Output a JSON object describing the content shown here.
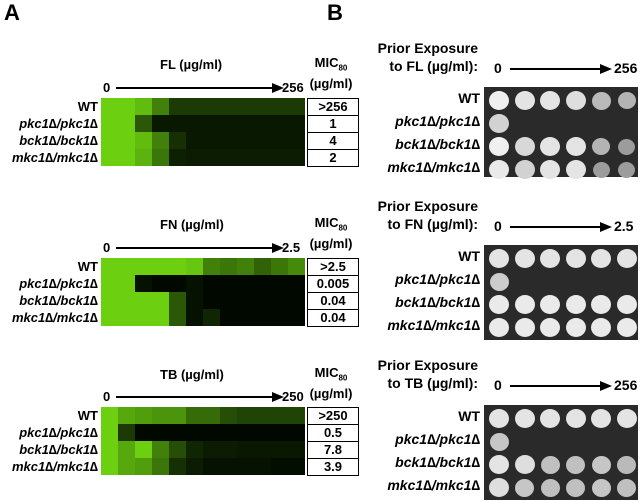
{
  "panels": {
    "A": {
      "letter": "A"
    },
    "B": {
      "letter": "B"
    }
  },
  "strains": [
    "WT",
    "pkc1∆/pkc1∆",
    "bck1∆/bck1∆",
    "mkc1∆/mkc1∆"
  ],
  "mic_header": {
    "line1": "MIC",
    "sub": "80",
    "line2": "(µg/ml)"
  },
  "drugs": [
    {
      "id": "FL",
      "axis_title": "FL (µg/ml)",
      "min_label": "0",
      "max_label": "256",
      "mic_values": [
        ">256",
        "1",
        "4",
        "2"
      ],
      "prior_line1": "Prior Exposure",
      "prior_line2": "to FL (µg/ml):",
      "prior_min": "0",
      "prior_max": "256"
    },
    {
      "id": "FN",
      "axis_title": "FN (µg/ml)",
      "min_label": "0",
      "max_label": "2.5",
      "mic_values": [
        ">2.5",
        "0.005",
        "0.04",
        "0.04"
      ],
      "prior_line1": "Prior Exposure",
      "prior_line2": "to FN (µg/ml):",
      "prior_min": "0",
      "prior_max": "2.5"
    },
    {
      "id": "TB",
      "axis_title": "TB (µg/ml)",
      "min_label": "0",
      "max_label": "250",
      "mic_values": [
        ">250",
        "0.5",
        "7.8",
        "3.9"
      ],
      "prior_line1": "Prior Exposure",
      "prior_line2": "to TB (µg/ml):",
      "prior_min": "0",
      "prior_max": "256"
    }
  ],
  "chart_data": [
    {
      "type": "heatmap",
      "title": "FL (µg/ml)",
      "x": "0 → 256 (12 concentrations)",
      "rows": [
        "WT",
        "pkc1∆/pkc1∆",
        "bck1∆/bck1∆",
        "mkc1∆/mkc1∆"
      ],
      "growth": [
        [
          1.0,
          1.0,
          0.9,
          0.6,
          0.25,
          0.25,
          0.25,
          0.25,
          0.25,
          0.25,
          0.25,
          0.25
        ],
        [
          1.0,
          1.0,
          0.4,
          0.08,
          0.08,
          0.08,
          0.08,
          0.08,
          0.08,
          0.08,
          0.08,
          0.08
        ],
        [
          1.0,
          1.0,
          0.9,
          0.6,
          0.2,
          0.08,
          0.08,
          0.08,
          0.08,
          0.08,
          0.08,
          0.08
        ],
        [
          1.0,
          1.0,
          0.85,
          0.55,
          0.12,
          0.1,
          0.1,
          0.1,
          0.1,
          0.1,
          0.1,
          0.1
        ]
      ],
      "mic80": [
        ">256",
        "1",
        "4",
        "2"
      ]
    },
    {
      "type": "heatmap",
      "title": "FN (µg/ml)",
      "x": "0 → 2.5 (12 concentrations)",
      "rows": [
        "WT",
        "pkc1∆/pkc1∆",
        "bck1∆/bck1∆",
        "mkc1∆/mkc1∆"
      ],
      "growth": [
        [
          1.0,
          1.0,
          1.0,
          1.0,
          1.0,
          0.95,
          0.6,
          0.55,
          0.6,
          0.45,
          0.55,
          0.65
        ],
        [
          1.0,
          1.0,
          0.05,
          0.0,
          0.0,
          0.05,
          0.0,
          0.0,
          0.0,
          0.0,
          0.0,
          0.0
        ],
        [
          1.0,
          1.0,
          1.0,
          1.0,
          0.4,
          0.05,
          0.0,
          0.0,
          0.0,
          0.0,
          0.0,
          0.0
        ],
        [
          1.0,
          1.0,
          1.0,
          1.0,
          0.4,
          0.05,
          0.15,
          0.0,
          0.0,
          0.0,
          0.0,
          0.0
        ]
      ],
      "mic80": [
        ">2.5",
        "0.005",
        "0.04",
        "0.04"
      ]
    },
    {
      "type": "heatmap",
      "title": "TB (µg/ml)",
      "x": "0 → 250 (12 concentrations)",
      "rows": [
        "WT",
        "pkc1∆/pkc1∆",
        "bck1∆/bck1∆",
        "mkc1∆/mkc1∆"
      ],
      "growth": [
        [
          1.0,
          0.8,
          0.75,
          0.7,
          0.7,
          0.5,
          0.5,
          0.35,
          0.3,
          0.3,
          0.3,
          0.3
        ],
        [
          1.0,
          0.25,
          0.0,
          0.0,
          0.0,
          0.0,
          0.0,
          0.0,
          0.0,
          0.0,
          0.0,
          0.0
        ],
        [
          1.0,
          0.8,
          1.0,
          0.6,
          0.35,
          0.15,
          0.1,
          0.1,
          0.08,
          0.08,
          0.08,
          0.08
        ],
        [
          1.0,
          0.8,
          0.75,
          0.55,
          0.2,
          0.1,
          0.05,
          0.05,
          0.05,
          0.05,
          0.03,
          0.03
        ]
      ],
      "mic80": [
        ">250",
        "0.5",
        "7.8",
        "3.9"
      ]
    }
  ],
  "plates": [
    {
      "id": "FL",
      "spots": [
        [
          1.0,
          0.9,
          0.9,
          0.85,
          0.55,
          0.5
        ],
        [
          0.75,
          0,
          0,
          0,
          0,
          0
        ],
        [
          1.0,
          0.8,
          0.9,
          0.9,
          0.5,
          0.3
        ],
        [
          0.95,
          0.75,
          0.9,
          0.9,
          0.3,
          0.3
        ]
      ]
    },
    {
      "id": "FN",
      "spots": [
        [
          0.9,
          0.9,
          0.9,
          0.9,
          0.9,
          0.9
        ],
        [
          0.7,
          0,
          0,
          0,
          0,
          0
        ],
        [
          0.95,
          0.95,
          0.95,
          0.95,
          0.95,
          0.95
        ],
        [
          0.95,
          0.95,
          0.95,
          0.95,
          0.95,
          0.95
        ]
      ]
    },
    {
      "id": "TB",
      "spots": [
        [
          0.9,
          0.9,
          0.9,
          0.9,
          0.9,
          0.9
        ],
        [
          0.65,
          0,
          0,
          0,
          0,
          0
        ],
        [
          0.9,
          0.85,
          0.6,
          0.6,
          0.65,
          0.55
        ],
        [
          0.85,
          0.65,
          0.6,
          0.6,
          0.65,
          0.6
        ]
      ]
    }
  ]
}
